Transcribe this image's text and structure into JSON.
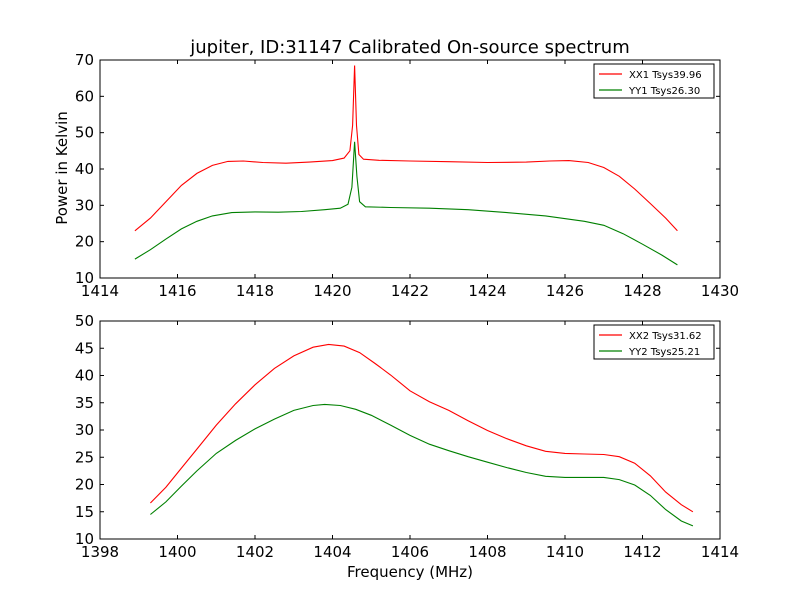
{
  "figure": {
    "title": "jupiter, ID:31147 Calibrated On-source spectrum",
    "xlabel": "Frequency (MHz)",
    "ylabel": "Power in Kelvin"
  },
  "chart_data": [
    {
      "type": "line",
      "xlim": [
        1414,
        1430
      ],
      "ylim": [
        10,
        70
      ],
      "xticks": [
        1414,
        1416,
        1418,
        1420,
        1422,
        1424,
        1426,
        1428,
        1430
      ],
      "yticks": [
        10,
        20,
        30,
        40,
        50,
        60,
        70
      ],
      "legend_position": "top-right",
      "grid": false,
      "series": [
        {
          "name": "XX1 Tsys39.96",
          "color": "#ff0000",
          "points": [
            [
              1414.9,
              23
            ],
            [
              1415.3,
              26.5
            ],
            [
              1415.7,
              31
            ],
            [
              1416.1,
              35.5
            ],
            [
              1416.5,
              38.8
            ],
            [
              1416.9,
              41
            ],
            [
              1417.3,
              42.1
            ],
            [
              1417.7,
              42.2
            ],
            [
              1418.2,
              41.8
            ],
            [
              1418.8,
              41.6
            ],
            [
              1419.4,
              41.9
            ],
            [
              1420.0,
              42.3
            ],
            [
              1420.3,
              43
            ],
            [
              1420.45,
              45
            ],
            [
              1420.52,
              52
            ],
            [
              1420.57,
              68.5
            ],
            [
              1420.62,
              52
            ],
            [
              1420.68,
              44
            ],
            [
              1420.8,
              42.7
            ],
            [
              1421.2,
              42.4
            ],
            [
              1422,
              42.2
            ],
            [
              1423,
              42
            ],
            [
              1424,
              41.8
            ],
            [
              1425,
              41.9
            ],
            [
              1425.6,
              42.2
            ],
            [
              1426.1,
              42.3
            ],
            [
              1426.6,
              41.8
            ],
            [
              1427.0,
              40.4
            ],
            [
              1427.4,
              38
            ],
            [
              1427.8,
              34.5
            ],
            [
              1428.2,
              30.5
            ],
            [
              1428.6,
              26.5
            ],
            [
              1428.9,
              23
            ]
          ]
        },
        {
          "name": "YY1 Tsys26.30",
          "color": "#008000",
          "points": [
            [
              1414.9,
              15.2
            ],
            [
              1415.3,
              17.8
            ],
            [
              1415.7,
              20.7
            ],
            [
              1416.1,
              23.5
            ],
            [
              1416.5,
              25.6
            ],
            [
              1416.9,
              27.1
            ],
            [
              1417.4,
              28
            ],
            [
              1418,
              28.2
            ],
            [
              1418.6,
              28.1
            ],
            [
              1419.2,
              28.3
            ],
            [
              1419.8,
              28.8
            ],
            [
              1420.2,
              29.2
            ],
            [
              1420.4,
              30.3
            ],
            [
              1420.5,
              35
            ],
            [
              1420.57,
              47.5
            ],
            [
              1420.63,
              38
            ],
            [
              1420.7,
              31
            ],
            [
              1420.85,
              29.6
            ],
            [
              1421.5,
              29.4
            ],
            [
              1422.5,
              29.2
            ],
            [
              1423.5,
              28.8
            ],
            [
              1424.5,
              28
            ],
            [
              1425.5,
              27.1
            ],
            [
              1426.5,
              25.6
            ],
            [
              1427.0,
              24.5
            ],
            [
              1427.5,
              22.2
            ],
            [
              1428.0,
              19.3
            ],
            [
              1428.5,
              16.3
            ],
            [
              1428.9,
              13.6
            ]
          ]
        }
      ]
    },
    {
      "type": "line",
      "xlim": [
        1398,
        1414
      ],
      "ylim": [
        10,
        50
      ],
      "xticks": [
        1398,
        1400,
        1402,
        1404,
        1406,
        1408,
        1410,
        1412,
        1414
      ],
      "yticks": [
        10,
        15,
        20,
        25,
        30,
        35,
        40,
        45,
        50
      ],
      "legend_position": "top-right",
      "grid": false,
      "series": [
        {
          "name": "XX2 Tsys31.62",
          "color": "#ff0000",
          "points": [
            [
              1399.3,
              16.6
            ],
            [
              1399.7,
              19.5
            ],
            [
              1400.1,
              23
            ],
            [
              1400.5,
              26.5
            ],
            [
              1401.0,
              30.9
            ],
            [
              1401.5,
              34.8
            ],
            [
              1402.0,
              38.3
            ],
            [
              1402.5,
              41.3
            ],
            [
              1403.0,
              43.6
            ],
            [
              1403.5,
              45.2
            ],
            [
              1403.9,
              45.7
            ],
            [
              1404.3,
              45.4
            ],
            [
              1404.7,
              44.2
            ],
            [
              1405.1,
              42.2
            ],
            [
              1405.5,
              40.1
            ],
            [
              1406.0,
              37.2
            ],
            [
              1406.5,
              35.2
            ],
            [
              1407.0,
              33.6
            ],
            [
              1407.5,
              31.7
            ],
            [
              1408.0,
              29.9
            ],
            [
              1408.5,
              28.4
            ],
            [
              1409.0,
              27.1
            ],
            [
              1409.5,
              26.1
            ],
            [
              1410.0,
              25.7
            ],
            [
              1410.5,
              25.6
            ],
            [
              1411.0,
              25.5
            ],
            [
              1411.4,
              25.1
            ],
            [
              1411.8,
              23.9
            ],
            [
              1412.2,
              21.6
            ],
            [
              1412.6,
              18.6
            ],
            [
              1413.0,
              16.3
            ],
            [
              1413.3,
              15
            ]
          ]
        },
        {
          "name": "YY2 Tsys25.21",
          "color": "#008000",
          "points": [
            [
              1399.3,
              14.5
            ],
            [
              1399.7,
              16.8
            ],
            [
              1400.1,
              19.7
            ],
            [
              1400.5,
              22.5
            ],
            [
              1401.0,
              25.7
            ],
            [
              1401.5,
              28.1
            ],
            [
              1402.0,
              30.2
            ],
            [
              1402.5,
              32
            ],
            [
              1403.0,
              33.6
            ],
            [
              1403.5,
              34.5
            ],
            [
              1403.8,
              34.7
            ],
            [
              1404.2,
              34.5
            ],
            [
              1404.6,
              33.8
            ],
            [
              1405.0,
              32.7
            ],
            [
              1405.5,
              30.9
            ],
            [
              1406.0,
              29
            ],
            [
              1406.5,
              27.4
            ],
            [
              1407.0,
              26.2
            ],
            [
              1407.5,
              25.1
            ],
            [
              1408.0,
              24.1
            ],
            [
              1408.5,
              23.1
            ],
            [
              1409.0,
              22.2
            ],
            [
              1409.5,
              21.5
            ],
            [
              1410.0,
              21.3
            ],
            [
              1410.5,
              21.3
            ],
            [
              1411.0,
              21.3
            ],
            [
              1411.4,
              20.9
            ],
            [
              1411.8,
              19.9
            ],
            [
              1412.2,
              18
            ],
            [
              1412.6,
              15.4
            ],
            [
              1413.0,
              13.3
            ],
            [
              1413.3,
              12.4
            ]
          ]
        }
      ]
    }
  ]
}
